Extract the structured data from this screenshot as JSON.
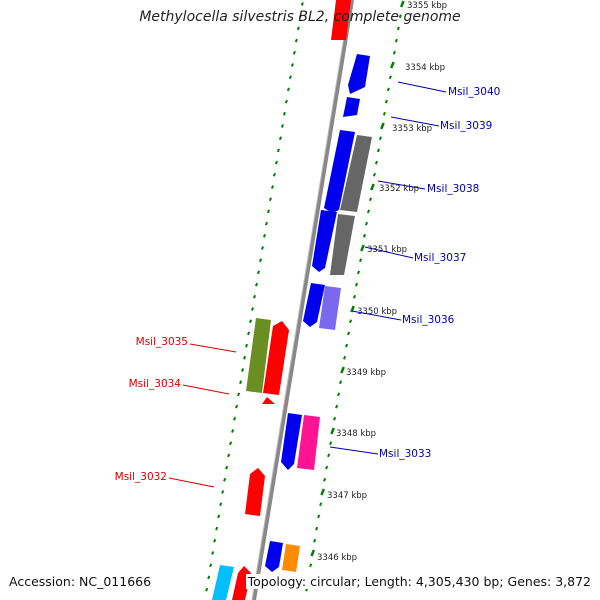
{
  "title": "Methylocella silvestris BL2, complete genome",
  "footer": {
    "accession": "Accession: NC_011666",
    "topology": "Topology: circular; Length: 4,305,430 bp; Genes: 3,872"
  },
  "ruler_labels": [
    "3355 kbp",
    "3354 kbp",
    "3353 kbp",
    "3352 kbp",
    "3351 kbp",
    "3350 kbp",
    "3349 kbp",
    "3348 kbp",
    "3347 kbp",
    "3346 kbp"
  ],
  "gene_labels": [
    {
      "text": "Msil_3040",
      "color": "#0000aa"
    },
    {
      "text": "Msil_3039",
      "color": "#0000aa"
    },
    {
      "text": "Msil_3038",
      "color": "#0000aa"
    },
    {
      "text": "Msil_3037",
      "color": "#0000aa"
    },
    {
      "text": "Msil_3036",
      "color": "#0000aa"
    },
    {
      "text": "Msil_3033",
      "color": "#0000aa"
    },
    {
      "text": "Msil_3035",
      "color": "#dd0000"
    },
    {
      "text": "Msil_3034",
      "color": "#dd0000"
    },
    {
      "text": "Msil_3032",
      "color": "#dd0000"
    }
  ],
  "colors": {
    "blue": "#0000ee",
    "red": "#ff0000",
    "gray": "#666666",
    "olive": "#6b8e23",
    "purple": "#7b68ee",
    "magenta": "#ff1493",
    "orange": "#ff8c00",
    "cyan": "#00bfff",
    "tick": "#008000",
    "backbone": "#888888"
  }
}
